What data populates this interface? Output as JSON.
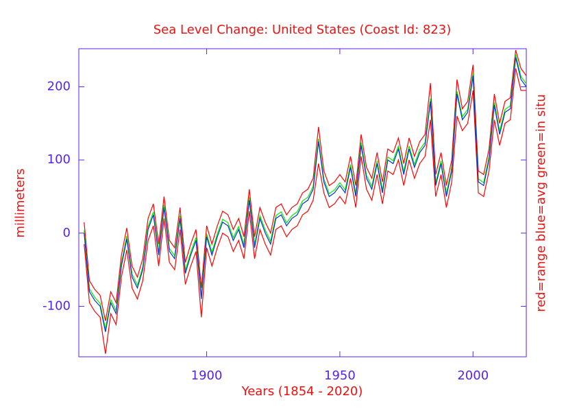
{
  "chart_data": {
    "type": "line",
    "title": "Sea Level Change: United States (Coast Id: 823)",
    "x_label": "Years (1854 - 2020)",
    "y_label": "millimeters",
    "y2_label": "red=range  blue=avg  green=in situ",
    "x": [
      1854,
      1856,
      1858,
      1860,
      1862,
      1864,
      1866,
      1868,
      1870,
      1872,
      1874,
      1876,
      1878,
      1880,
      1882,
      1884,
      1886,
      1888,
      1890,
      1892,
      1894,
      1896,
      1898,
      1900,
      1902,
      1904,
      1906,
      1908,
      1910,
      1912,
      1914,
      1916,
      1918,
      1920,
      1922,
      1924,
      1926,
      1928,
      1930,
      1932,
      1934,
      1936,
      1938,
      1940,
      1942,
      1944,
      1946,
      1948,
      1950,
      1952,
      1954,
      1956,
      1958,
      1960,
      1962,
      1964,
      1966,
      1968,
      1970,
      1972,
      1974,
      1976,
      1978,
      1980,
      1982,
      1984,
      1986,
      1988,
      1990,
      1992,
      1994,
      1996,
      1998,
      2000,
      2002,
      2004,
      2006,
      2008,
      2010,
      2012,
      2014,
      2016,
      2018,
      2020
    ],
    "series": [
      {
        "color": "#ff0000",
        "values": [
          15,
          -65,
          -77,
          -85,
          -120,
          -80,
          -95,
          -30,
          7,
          -45,
          -60,
          -35,
          20,
          40,
          -15,
          50,
          -10,
          -20,
          35,
          -40,
          -15,
          5,
          -75,
          10,
          -15,
          10,
          30,
          25,
          5,
          20,
          -5,
          60,
          -5,
          35,
          15,
          0,
          35,
          40,
          25,
          35,
          40,
          55,
          60,
          75,
          145,
          85,
          65,
          70,
          80,
          70,
          105,
          65,
          135,
          90,
          75,
          110,
          70,
          115,
          110,
          130,
          95,
          130,
          105,
          125,
          135,
          205,
          80,
          110,
          65,
          100,
          210,
          170,
          180,
          230,
          85,
          80,
          115,
          190,
          150,
          180,
          185,
          250,
          225,
          215
        ]
      },
      {
        "color": "#ff0000",
        "values": [
          -15,
          -95,
          -107,
          -115,
          -165,
          -110,
          -125,
          -60,
          -23,
          -75,
          -90,
          -65,
          -10,
          10,
          -45,
          20,
          -40,
          -50,
          5,
          -70,
          -45,
          -25,
          -115,
          -20,
          -45,
          -20,
          0,
          -5,
          -25,
          -10,
          -35,
          30,
          -35,
          5,
          -15,
          -30,
          5,
          10,
          -5,
          5,
          10,
          25,
          30,
          45,
          95,
          55,
          35,
          40,
          50,
          40,
          75,
          35,
          105,
          60,
          45,
          80,
          40,
          85,
          80,
          100,
          65,
          100,
          75,
          95,
          105,
          155,
          50,
          80,
          35,
          70,
          160,
          140,
          150,
          195,
          55,
          50,
          85,
          155,
          120,
          150,
          155,
          225,
          195,
          195
        ]
      },
      {
        "color": "#00ee00",
        "values": [
          4,
          -76,
          -88,
          -96,
          -131,
          -91,
          -106,
          -41,
          -4,
          -56,
          -71,
          -46,
          9,
          29,
          -26,
          39,
          -21,
          -31,
          24,
          -51,
          -26,
          -6,
          -86,
          -1,
          -26,
          -1,
          19,
          14,
          -6,
          9,
          -16,
          49,
          -16,
          24,
          4,
          -11,
          24,
          29,
          14,
          24,
          29,
          44,
          49,
          64,
          129,
          74,
          54,
          59,
          69,
          59,
          94,
          54,
          124,
          79,
          64,
          99,
          59,
          104,
          99,
          119,
          84,
          119,
          94,
          114,
          124,
          184,
          69,
          99,
          54,
          89,
          194,
          159,
          169,
          219,
          74,
          69,
          104,
          179,
          139,
          169,
          174,
          244,
          214,
          204
        ]
      },
      {
        "color": "#0033cc",
        "values": [
          0,
          -80,
          -92,
          -100,
          -135,
          -95,
          -110,
          -45,
          -8,
          -60,
          -75,
          -50,
          5,
          25,
          -30,
          35,
          -25,
          -35,
          20,
          -55,
          -30,
          -10,
          -90,
          -5,
          -30,
          -5,
          15,
          10,
          -10,
          5,
          -20,
          45,
          -20,
          20,
          0,
          -15,
          20,
          25,
          10,
          20,
          25,
          40,
          45,
          60,
          125,
          70,
          50,
          55,
          65,
          55,
          90,
          50,
          120,
          75,
          60,
          95,
          55,
          100,
          95,
          115,
          80,
          115,
          90,
          110,
          120,
          180,
          65,
          95,
          50,
          85,
          190,
          155,
          165,
          215,
          70,
          65,
          100,
          175,
          135,
          165,
          170,
          240,
          210,
          200
        ]
      }
    ],
    "xlim": [
      1852,
      2020
    ],
    "xticks": [
      1900,
      1950,
      2000
    ],
    "ylim": [
      -169,
      252
    ],
    "yticks": [
      -100,
      0,
      100,
      200
    ],
    "axis_color": "#5522ee",
    "label_color": "#ee1111"
  }
}
